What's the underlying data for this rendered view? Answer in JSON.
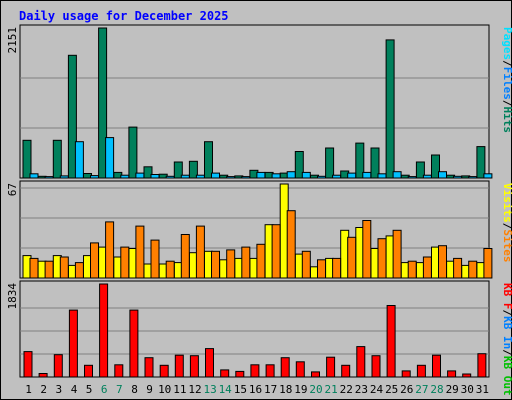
{
  "title": "Daily usage for December 2025",
  "colors": {
    "title": "#0000ff",
    "hits": "#00805c",
    "files": "#00c0ff",
    "pages": "#00e0ff",
    "visits": "#ffff00",
    "sites": "#ff8000",
    "kb_in": "#ff0000",
    "kb_out": "#00c000",
    "kb_in_label": "#0080ff",
    "kb_f": "#ff0000",
    "weekend_day": "#00805c",
    "weekday_day": "#000000",
    "separator": "#000000"
  },
  "panel_labels": {
    "top": [
      {
        "text": "Pages",
        "color": "#00e0ff"
      },
      {
        "text": "/",
        "color": "#000000"
      },
      {
        "text": "Files",
        "color": "#0080ff"
      },
      {
        "text": "/",
        "color": "#000000"
      },
      {
        "text": "Hits",
        "color": "#00805c"
      }
    ],
    "middle": [
      {
        "text": "Visits",
        "color": "#ffff00"
      },
      {
        "text": "/",
        "color": "#000000"
      },
      {
        "text": "Sites",
        "color": "#ff8000"
      }
    ],
    "bottom": [
      {
        "text": "KB F",
        "color": "#ff0000"
      },
      {
        "text": "/",
        "color": "#000000"
      },
      {
        "text": "KB In",
        "color": "#0080ff"
      },
      {
        "text": "/",
        "color": "#000000"
      },
      {
        "text": "KB Out",
        "color": "#00c000"
      }
    ]
  },
  "chart_data": {
    "type": "bar",
    "title": "Daily usage for December 2025",
    "x": [
      "1",
      "2",
      "3",
      "4",
      "5",
      "6",
      "7",
      "8",
      "9",
      "10",
      "11",
      "12",
      "13",
      "14",
      "15",
      "16",
      "17",
      "18",
      "19",
      "20",
      "21",
      "22",
      "23",
      "24",
      "25",
      "26",
      "27",
      "28",
      "29",
      "30",
      "31"
    ],
    "weekend_days": [
      "6",
      "7",
      "13",
      "14",
      "20",
      "21",
      "27",
      "28"
    ],
    "panels": [
      {
        "name": "top",
        "ymax": 2151,
        "ymax_label": "2151",
        "series": [
          {
            "name": "Hits",
            "color": "#00805c",
            "values": [
              540,
              25,
              540,
              1760,
              65,
              2151,
              80,
              730,
              160,
              55,
              230,
              240,
              520,
              40,
              30,
              110,
              80,
              70,
              380,
              40,
              430,
              100,
              500,
              430,
              1980,
              40,
              230,
              330,
              40,
              30,
              450
            ]
          },
          {
            "name": "Files",
            "color": "#00c0ff",
            "values": [
              60,
              20,
              30,
              520,
              35,
              580,
              40,
              70,
              50,
              25,
              40,
              40,
              70,
              20,
              20,
              80,
              60,
              90,
              80,
              25,
              40,
              70,
              80,
              60,
              90,
              20,
              40,
              90,
              25,
              20,
              60
            ]
          }
        ]
      },
      {
        "name": "middle",
        "ymax": 67,
        "ymax_label": "67",
        "series": [
          {
            "name": "Visits",
            "color": "#ffff00",
            "values": [
              16,
              12,
              16,
              9,
              16,
              22,
              15,
              21,
              10,
              10,
              11,
              18,
              19,
              13,
              14,
              14,
              38,
              67,
              17,
              8,
              14,
              34,
              36,
              21,
              30,
              11,
              11,
              22,
              12,
              9,
              11
            ]
          },
          {
            "name": "Sites",
            "color": "#ff8000",
            "values": [
              14,
              12,
              15,
              11,
              25,
              40,
              22,
              37,
              27,
              12,
              31,
              37,
              19,
              20,
              22,
              24,
              38,
              48,
              19,
              13,
              14,
              29,
              41,
              28,
              34,
              12,
              15,
              23,
              14,
              12,
              21
            ]
          }
        ]
      },
      {
        "name": "bottom",
        "ymax": 1834,
        "ymax_label": "1834",
        "series": [
          {
            "name": "KB F",
            "color": "#ff0000",
            "values": [
              500,
              70,
              440,
              1320,
              230,
              1834,
              240,
              1320,
              380,
              230,
              430,
              420,
              560,
              140,
              110,
              240,
              240,
              380,
              300,
              100,
              390,
              230,
              600,
              420,
              1410,
              120,
              230,
              430,
              120,
              60,
              460
            ]
          }
        ]
      }
    ]
  }
}
